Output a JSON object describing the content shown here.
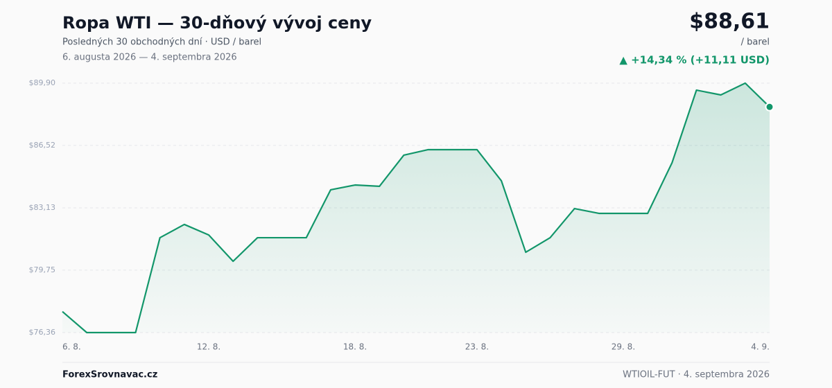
{
  "chart_data": {
    "type": "line",
    "title": "Ropa WTI — 30-dňový vývoj ceny",
    "subtitle": "Posledných 30 obchodných dní · USD / barel",
    "date_range": "6. augusta 2026 — 4. septembra 2026",
    "price": "$88,61",
    "price_unit": "/ barel",
    "change": "▲ +14,34 % (+11,11 USD)",
    "categories": [
      "6. 8.",
      null,
      null,
      null,
      null,
      null,
      "12. 8.",
      null,
      null,
      null,
      null,
      null,
      "18. 8.",
      null,
      null,
      null,
      null,
      "23. 8.",
      null,
      null,
      null,
      null,
      null,
      "29. 8.",
      null,
      null,
      null,
      null,
      null,
      "4. 9."
    ],
    "values": [
      77.5,
      76.36,
      76.36,
      76.36,
      81.51,
      82.23,
      81.66,
      80.23,
      81.51,
      81.51,
      81.51,
      84.11,
      84.37,
      84.3,
      85.99,
      86.29,
      86.29,
      86.29,
      84.6,
      80.72,
      81.51,
      83.09,
      82.83,
      82.83,
      82.83,
      85.58,
      89.52,
      89.26,
      89.9,
      88.61
    ],
    "color": "#12966a",
    "ylim": [
      76.36,
      89.9
    ],
    "yticks": [
      {
        "value": 76.36,
        "label": "$76,36"
      },
      {
        "value": 79.75,
        "label": "$79,75"
      },
      {
        "value": 83.13,
        "label": "$83,13"
      },
      {
        "value": 86.52,
        "label": "$86,52"
      },
      {
        "value": 89.9,
        "label": "$89,90"
      }
    ],
    "grid": true
  },
  "footer": {
    "source": "ForexSrovnavac.cz",
    "symbol": "WTIOIL-FUT · 4. septembra 2026"
  }
}
